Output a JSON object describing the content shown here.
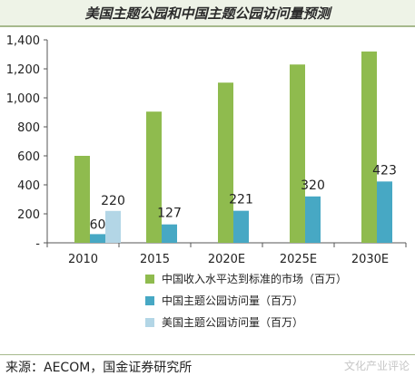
{
  "title": "美国主题公园和中国主题公园访问量预测",
  "source": "来源：AECOM，国金证券研究所",
  "watermark": "文化产业评论",
  "chart_data": {
    "type": "bar",
    "categories": [
      "2010",
      "2015",
      "2020E",
      "2025E",
      "2030E"
    ],
    "ylim": [
      0,
      1400
    ],
    "yticks": [
      0,
      200,
      400,
      600,
      800,
      1000,
      1200,
      1400
    ],
    "ytick_labels": [
      "-",
      "200",
      "400",
      "600",
      "800",
      "1,000",
      "1,200",
      "1,400"
    ],
    "series": [
      {
        "name": "中国收入水平达到标准的市场（百万）",
        "color": "#8fbb4e",
        "values": [
          600,
          905,
          1105,
          1230,
          1320
        ],
        "labels": [
          null,
          null,
          null,
          null,
          null
        ]
      },
      {
        "name": "中国主题公园访问量（百万）",
        "color": "#47a8c4",
        "values": [
          60,
          127,
          221,
          320,
          423
        ],
        "labels": [
          "60",
          "127",
          "221",
          "320",
          "423"
        ]
      },
      {
        "name": "美国主题公园访问量（百万）",
        "color": "#b3d6e6",
        "values": [
          220,
          null,
          null,
          null,
          null
        ],
        "labels": [
          "220",
          null,
          null,
          null,
          null
        ]
      }
    ],
    "grid": false,
    "legend_position": "bottom-right"
  }
}
